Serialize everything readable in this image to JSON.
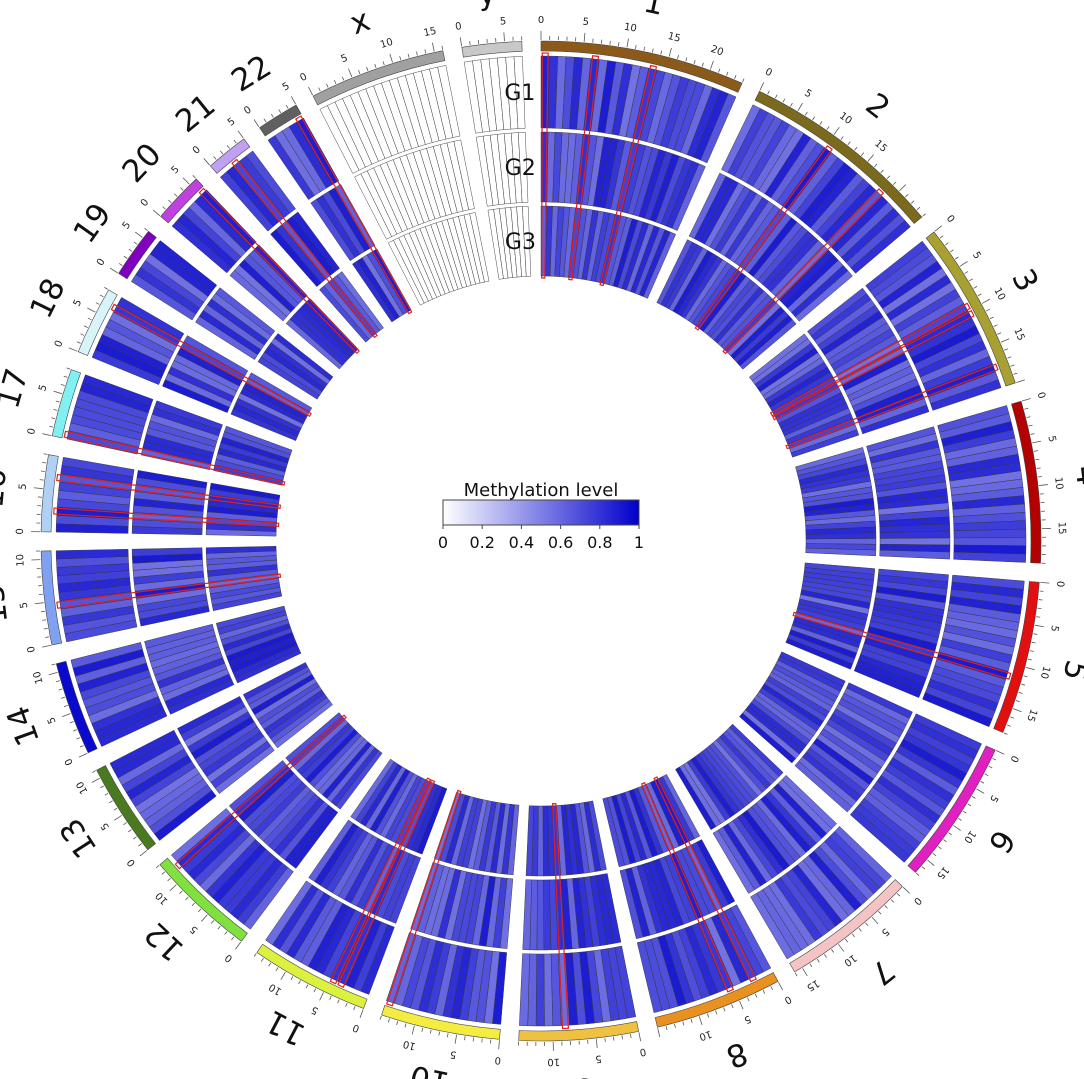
{
  "chart_data": {
    "type": "heatmap",
    "layout": "circular",
    "legend": {
      "title": "Methylation level",
      "ticks": [
        "0",
        "0.2",
        "0.4",
        "0.6",
        "0.8",
        "1"
      ],
      "range": [
        0,
        1
      ],
      "color_low": "#ffffff",
      "color_high": "#0000cc"
    },
    "tracks": [
      "G1",
      "G2",
      "G3"
    ],
    "chromosomes": [
      {
        "name": "1",
        "length": 24,
        "color": "#8b5a1b",
        "tick_labels": [
          "0",
          "5",
          "10",
          "15",
          "20"
        ]
      },
      {
        "name": "2",
        "length": 24,
        "color": "#7b6a1e",
        "tick_labels": [
          "0",
          "5",
          "10",
          "15"
        ]
      },
      {
        "name": "3",
        "length": 20,
        "color": "#a8a032",
        "tick_labels": [
          "0",
          "5",
          "10",
          "15"
        ]
      },
      {
        "name": "4",
        "length": 19,
        "color": "#b30000",
        "tick_labels": [
          "0",
          "5",
          "10",
          "15"
        ]
      },
      {
        "name": "5",
        "length": 18,
        "color": "#e01010",
        "tick_labels": [
          "0",
          "5",
          "10",
          "15"
        ]
      },
      {
        "name": "6",
        "length": 17,
        "color": "#e020c0",
        "tick_labels": [
          "0",
          "5",
          "10",
          "15"
        ]
      },
      {
        "name": "7",
        "length": 16,
        "color": "#f4c4c4",
        "tick_labels": [
          "0",
          "5",
          "10",
          "15"
        ]
      },
      {
        "name": "8",
        "length": 15,
        "color": "#e89020",
        "tick_labels": [
          "0",
          "5",
          "10"
        ]
      },
      {
        "name": "9",
        "length": 14,
        "color": "#f0c040",
        "tick_labels": [
          "0",
          "5",
          "10"
        ]
      },
      {
        "name": "10",
        "length": 14,
        "color": "#f4ec40",
        "tick_labels": [
          "0",
          "5",
          "10"
        ]
      },
      {
        "name": "11",
        "length": 14,
        "color": "#dcf040",
        "tick_labels": [
          "0",
          "5",
          "10"
        ]
      },
      {
        "name": "12",
        "length": 13,
        "color": "#80e040",
        "tick_labels": [
          "0",
          "5",
          "10"
        ]
      },
      {
        "name": "13",
        "length": 11,
        "color": "#4a7a20",
        "tick_labels": [
          "0",
          "5",
          "10"
        ]
      },
      {
        "name": "14",
        "length": 11,
        "color": "#0a0acc",
        "tick_labels": [
          "0",
          "5",
          "10"
        ]
      },
      {
        "name": "15",
        "length": 11,
        "color": "#80a0f0",
        "tick_labels": [
          "0",
          "5",
          "10"
        ]
      },
      {
        "name": "16",
        "length": 9,
        "color": "#b0d0f4",
        "tick_labels": [
          "0",
          "5"
        ]
      },
      {
        "name": "17",
        "length": 8,
        "color": "#80f0f0",
        "tick_labels": [
          "0",
          "5"
        ]
      },
      {
        "name": "18",
        "length": 8,
        "color": "#d8f4f8",
        "tick_labels": [
          "0",
          "5"
        ]
      },
      {
        "name": "19",
        "length": 6,
        "color": "#8000c0",
        "tick_labels": [
          "0",
          "5"
        ]
      },
      {
        "name": "20",
        "length": 6,
        "color": "#c040e0",
        "tick_labels": [
          "0",
          "5"
        ]
      },
      {
        "name": "21",
        "length": 5,
        "color": "#c0a0f0",
        "tick_labels": [
          "0",
          "5"
        ]
      },
      {
        "name": "22",
        "length": 5,
        "color": "#606060",
        "tick_labels": [
          "0",
          "5"
        ]
      },
      {
        "name": "x",
        "length": 16,
        "color": "#a0a0a0",
        "tick_labels": [
          "0",
          "5",
          "10",
          "15"
        ]
      },
      {
        "name": "y",
        "length": 7,
        "color": "#c8c8c8",
        "tick_labels": [
          "0",
          "5"
        ]
      }
    ],
    "highlight_color": "#e02020",
    "highlight_regions": [
      {
        "chr": "1",
        "pos": 0.5
      },
      {
        "chr": "1",
        "pos": 6.5
      },
      {
        "chr": "1",
        "pos": 13.5
      },
      {
        "chr": "2",
        "pos": 10.5
      },
      {
        "chr": "2",
        "pos": 18.5
      },
      {
        "chr": "3",
        "pos": 9.5
      },
      {
        "chr": "3",
        "pos": 10.5
      },
      {
        "chr": "3",
        "pos": 17.5
      },
      {
        "chr": "5",
        "pos": 11.5
      },
      {
        "chr": "8",
        "pos": 2.5
      },
      {
        "chr": "8",
        "pos": 5.5
      },
      {
        "chr": "9",
        "pos": 8.5
      },
      {
        "chr": "10",
        "pos": 13.5
      },
      {
        "chr": "11",
        "pos": 3.5
      },
      {
        "chr": "11",
        "pos": 4.5
      },
      {
        "chr": "12",
        "pos": 11.5
      },
      {
        "chr": "15",
        "pos": 4.5
      },
      {
        "chr": "16",
        "pos": 6.5
      },
      {
        "chr": "16",
        "pos": 2.5
      },
      {
        "chr": "17",
        "pos": 0.5
      },
      {
        "chr": "18",
        "pos": 6.5
      },
      {
        "chr": "20",
        "pos": 5.5
      },
      {
        "chr": "21",
        "pos": 2.5
      },
      {
        "chr": "22",
        "pos": 4.5
      }
    ]
  }
}
